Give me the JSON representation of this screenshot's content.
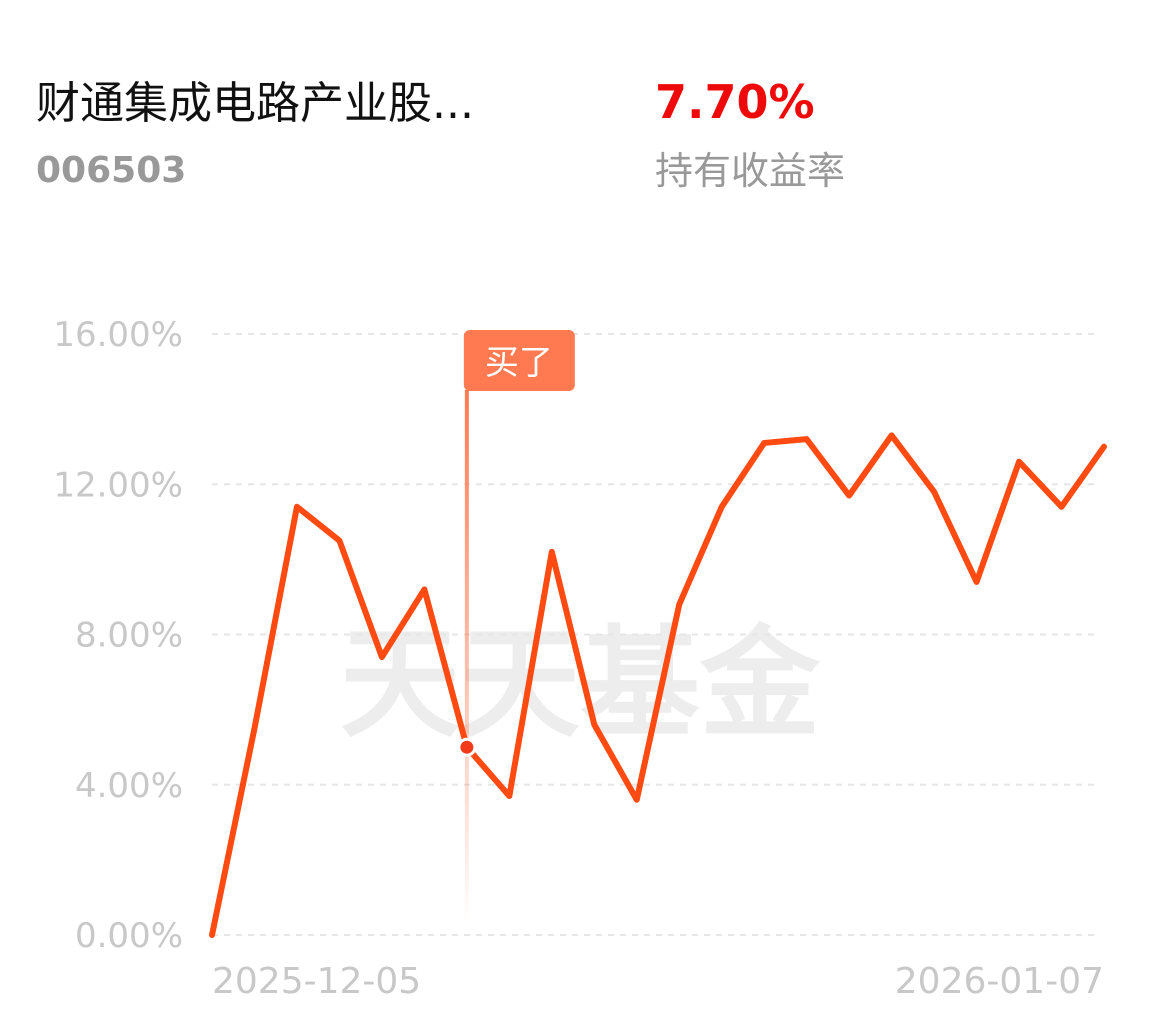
{
  "header": {
    "fund_name": "财通集成电路产业股...",
    "fund_code": "006503",
    "return": "7.70%",
    "return_label": "持有收益率"
  },
  "chart_data": {
    "type": "line",
    "categories": [
      "2025-12-05",
      null,
      null,
      null,
      null,
      null,
      null,
      null,
      null,
      null,
      null,
      null,
      null,
      null,
      null,
      null,
      null,
      null,
      null,
      null,
      null,
      "2026-01-07"
    ],
    "values": [
      0,
      5.5,
      11.4,
      10.5,
      7.4,
      9.2,
      5.0,
      3.7,
      10.2,
      5.6,
      3.6,
      8.8,
      11.4,
      13.1,
      13.2,
      11.7,
      13.3,
      11.8,
      9.4,
      12.6,
      11.4,
      13.0
    ],
    "color": "#ff4a12",
    "ylim": [
      0,
      16
    ],
    "yticks": [
      {
        "value": 0,
        "label": "0.00%"
      },
      {
        "value": 4,
        "label": "4.00%"
      },
      {
        "value": 8,
        "label": "8.00%"
      },
      {
        "value": 12,
        "label": "12.00%"
      },
      {
        "value": 16,
        "label": "16.00%"
      }
    ],
    "grid": true,
    "watermark": "天天基金",
    "annotations": [
      {
        "text": "买了",
        "at": 6
      }
    ]
  }
}
